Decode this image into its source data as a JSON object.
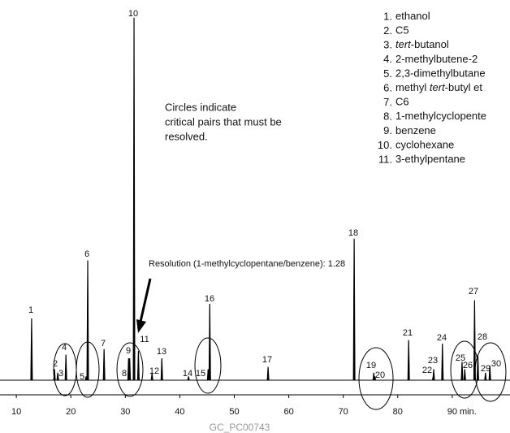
{
  "chart_data": {
    "type": "chromatogram",
    "labels": [
      1,
      2,
      3,
      4,
      5,
      6,
      7,
      8,
      9,
      10,
      11,
      12,
      13,
      14,
      15,
      16,
      17,
      18,
      19,
      20,
      21,
      22,
      23,
      24,
      25,
      26,
      27,
      28,
      29,
      30
    ],
    "x": [
      12.8,
      17.0,
      17.6,
      19.1,
      22.8,
      23.1,
      26.1,
      30.6,
      30.8,
      31.6,
      32.4,
      34.9,
      36.7,
      41.6,
      45.2,
      45.5,
      56.2,
      72.0,
      75.6,
      75.8,
      82.0,
      86.5,
      86.6,
      88.2,
      91.8,
      92.3,
      94.1,
      94.7,
      96.1,
      96.9
    ],
    "values": [
      17,
      3,
      2,
      7,
      1,
      33,
      8.5,
      6,
      6,
      100,
      8,
      2,
      6,
      1,
      3,
      21,
      3.6,
      39,
      2,
      1,
      11,
      1,
      3,
      10,
      5,
      3,
      22,
      7,
      2,
      4
    ],
    "color": "#000000",
    "xlim": [
      7.0,
      100.6
    ],
    "xticks": [
      10,
      20,
      30,
      40,
      50,
      60,
      70,
      80,
      90
    ],
    "ylim": [
      0,
      100
    ],
    "x_label": "min.",
    "annotation": [
      "Circles indicate",
      "critical pairs that must be",
      "resolved."
    ],
    "resolution_note": "Resolution (1-methylcyclopentane/benzene): 1.28",
    "caption": "GC_PC00743",
    "peak_key": [
      {
        "number": "1.",
        "name": [
          {
            "text": "ethanol"
          }
        ]
      },
      {
        "number": "2.",
        "name": [
          {
            "text": "C5"
          }
        ]
      },
      {
        "number": "3.",
        "name": [
          {
            "text": "tert",
            "italic": true
          },
          {
            "text": "-butanol"
          }
        ]
      },
      {
        "number": "4.",
        "name": [
          {
            "text": "2-methylbutene-2"
          }
        ]
      },
      {
        "number": "5.",
        "name": [
          {
            "text": "2,3-dimethylbutane"
          }
        ]
      },
      {
        "number": "6.",
        "name": [
          {
            "text": "methyl "
          },
          {
            "text": "tert",
            "italic": true
          },
          {
            "text": "-butyl et"
          }
        ]
      },
      {
        "number": "7.",
        "name": [
          {
            "text": "C6"
          }
        ]
      },
      {
        "number": "8.",
        "name": [
          {
            "text": "1-methylcyclopente"
          }
        ]
      },
      {
        "number": "9.",
        "name": [
          {
            "text": "benzene"
          }
        ]
      },
      {
        "number": "10.",
        "name": [
          {
            "text": "cyclohexane"
          }
        ]
      },
      {
        "number": "11.",
        "name": [
          {
            "text": "3-ethylpentane"
          }
        ]
      }
    ]
  }
}
